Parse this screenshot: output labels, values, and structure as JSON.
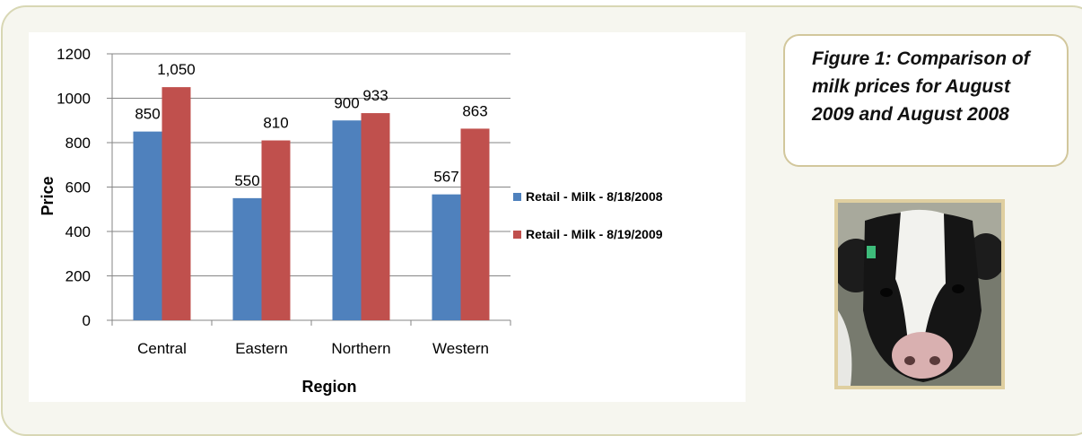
{
  "caption": {
    "text": "Figure 1: Comparison of milk prices for August 2009 and August 2008"
  },
  "photo": {
    "subject": "cow-photo"
  },
  "colors": {
    "series1": "#4f81bd",
    "series2": "#c0504d",
    "frame": "#d8d7b4",
    "caption_border": "#d2c79c"
  },
  "chart_data": {
    "type": "bar",
    "title": "",
    "xlabel": "Region",
    "ylabel": "Price",
    "categories": [
      "Central",
      "Eastern",
      "Northern",
      "Western"
    ],
    "ylim": [
      0,
      1200
    ],
    "yticks": [
      0,
      200,
      400,
      600,
      800,
      1000,
      1200
    ],
    "series": [
      {
        "name": "Retail - Milk - 8/18/2008",
        "values": [
          850,
          550,
          900,
          567
        ],
        "labels": [
          "850",
          "550",
          "900",
          "567"
        ]
      },
      {
        "name": "Retail - Milk - 8/19/2009",
        "values": [
          1050,
          810,
          933,
          863
        ],
        "labels": [
          "1,050",
          "810",
          "933",
          "863"
        ]
      }
    ],
    "grid": true,
    "legend_position": "right"
  }
}
